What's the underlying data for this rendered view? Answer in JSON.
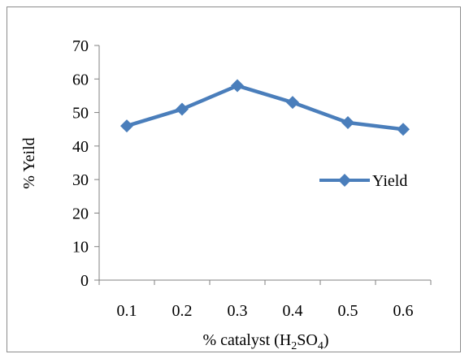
{
  "chart_data": {
    "type": "line",
    "categories": [
      "0.1",
      "0.2",
      "0.3",
      "0.4",
      "0.5",
      "0.6"
    ],
    "series": [
      {
        "name": "Yield",
        "values": [
          46,
          51,
          58,
          53,
          47,
          45
        ],
        "color": "#4a7ebb",
        "marker": "diamond"
      }
    ],
    "yticks": [
      "0",
      "10",
      "20",
      "30",
      "40",
      "50",
      "60",
      "70"
    ],
    "ylim": [
      0,
      70
    ],
    "ylabel": "% Yeild",
    "xlabel": {
      "prefix": "% catalyst (H",
      "sub1": "2",
      "mid": "SO",
      "sub2": "4",
      "suffix": ")"
    },
    "grid": false,
    "legend_position": "right"
  }
}
